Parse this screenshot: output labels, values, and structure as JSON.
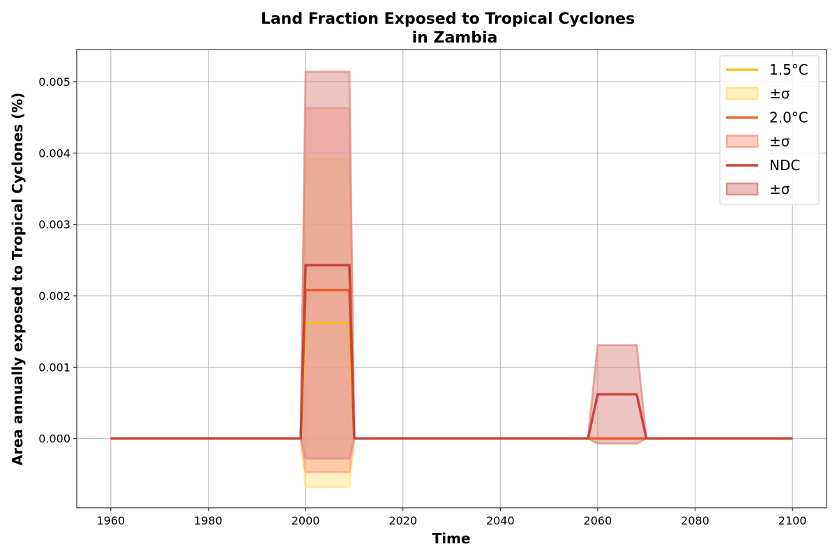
{
  "chart_data": {
    "type": "line",
    "title_line1": "Land Fraction Exposed to Tropical Cyclones",
    "title_line2": "in Zambia",
    "xlabel": "Time",
    "ylabel": "Area annually exposed to Tropical Cyclones (%)",
    "xlim": [
      1953,
      2107
    ],
    "ylim": [
      -0.00097,
      0.00545
    ],
    "xticks": [
      1960,
      1980,
      2000,
      2020,
      2040,
      2060,
      2080,
      2100
    ],
    "xtick_labels": [
      "1960",
      "1980",
      "2000",
      "2020",
      "2040",
      "2060",
      "2080",
      "2100"
    ],
    "yticks": [
      0.0,
      0.001,
      0.002,
      0.003,
      0.004,
      0.005
    ],
    "ytick_labels": [
      "0.000",
      "0.001",
      "0.002",
      "0.003",
      "0.004",
      "0.005"
    ],
    "grid": true,
    "legend_position": "top-right",
    "series": [
      {
        "name": "1.5°C",
        "band_label": "±σ",
        "color": "#fbbf24",
        "band_color": "#fde68a",
        "x": [
          1960,
          1999,
          2000,
          2009,
          2010,
          2058,
          2060,
          2068,
          2070,
          2100
        ],
        "mean": [
          0,
          0,
          0.00162,
          0.00162,
          0,
          0,
          0,
          0,
          0,
          0
        ],
        "upper": [
          0,
          0,
          0.00392,
          0.00392,
          0,
          0,
          0,
          0,
          0,
          0
        ],
        "lower": [
          0,
          0,
          -0.00068,
          -0.00068,
          0,
          0,
          0,
          0,
          0,
          0
        ]
      },
      {
        "name": "2.0°C",
        "band_label": "±σ",
        "color": "#f05a28",
        "band_color": "#fca68a",
        "x": [
          1960,
          1999,
          2000,
          2009,
          2010,
          2058,
          2060,
          2068,
          2070,
          2100
        ],
        "mean": [
          0,
          0,
          0.00208,
          0.00208,
          0,
          0,
          0,
          0,
          0,
          0
        ],
        "upper": [
          0,
          0,
          0.00463,
          0.00463,
          0,
          0,
          0,
          0,
          0,
          0
        ],
        "lower": [
          0,
          0,
          -0.00047,
          -0.00047,
          0,
          0,
          0,
          0,
          0,
          0
        ]
      },
      {
        "name": "NDC",
        "band_label": "±σ",
        "color": "#c8443a",
        "band_color": "#dc8a86",
        "x": [
          1960,
          1999,
          2000,
          2009,
          2010,
          2058,
          2060,
          2068,
          2070,
          2100
        ],
        "mean": [
          0,
          0,
          0.00243,
          0.00243,
          0,
          0,
          0.00062,
          0.00062,
          0,
          0
        ],
        "upper": [
          0,
          0,
          0.00514,
          0.00514,
          0,
          0,
          0.00131,
          0.00131,
          0,
          0
        ],
        "lower": [
          0,
          0,
          -0.00028,
          -0.00028,
          0,
          0,
          -7e-05,
          -7e-05,
          0,
          0
        ]
      }
    ]
  }
}
